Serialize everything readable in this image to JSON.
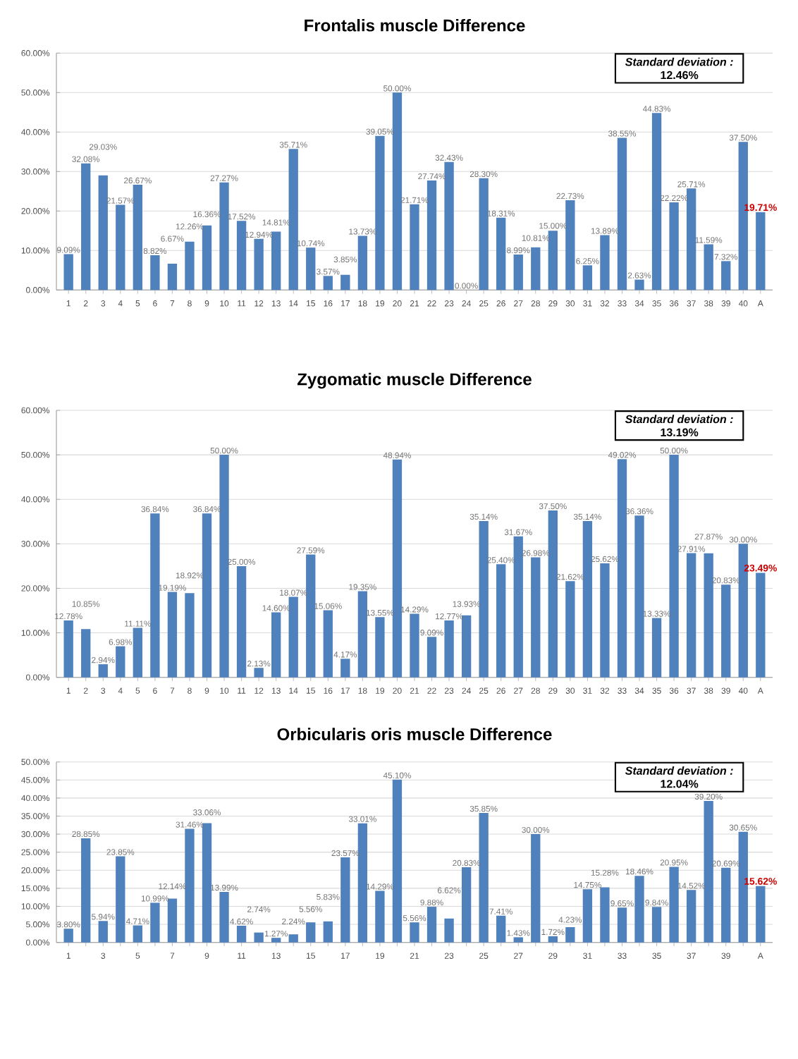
{
  "chart_data": [
    {
      "type": "bar",
      "title": "Frontalis muscle Difference",
      "color": "#4f81bd",
      "grid": "y",
      "annotations": [
        "Standard deviation :",
        "12.46%"
      ],
      "categories": [
        "1",
        "2",
        "3",
        "4",
        "5",
        "6",
        "7",
        "8",
        "9",
        "10",
        "11",
        "12",
        "13",
        "14",
        "15",
        "16",
        "17",
        "18",
        "19",
        "20",
        "21",
        "22",
        "23",
        "24",
        "25",
        "26",
        "27",
        "28",
        "29",
        "30",
        "31",
        "32",
        "33",
        "34",
        "35",
        "36",
        "37",
        "38",
        "39",
        "40",
        "A"
      ],
      "values": [
        9.09,
        32.08,
        29.03,
        21.57,
        26.67,
        8.82,
        6.67,
        12.26,
        16.36,
        27.27,
        17.52,
        12.94,
        14.81,
        35.71,
        10.74,
        3.57,
        3.85,
        13.73,
        39.05,
        50.0,
        21.71,
        27.74,
        32.43,
        0.0,
        28.3,
        18.31,
        8.99,
        10.81,
        15.0,
        22.73,
        6.25,
        13.89,
        38.55,
        2.63,
        44.83,
        22.22,
        25.71,
        11.59,
        7.32,
        37.5,
        19.71
      ],
      "value_labels": [
        "9.09%",
        "32.08%",
        "29.03%",
        "21.57%",
        "26.67%",
        "8.82%",
        "6.67%",
        "12.26%",
        "16.36%",
        "27.27%",
        "17.52%",
        "12.94%",
        "14.81%",
        "35.71%",
        "10.74%",
        "3.57%",
        "3.85%",
        "13.73%",
        "39.05%",
        "50.00%",
        "21.71%",
        "27.74%",
        "32.43%",
        "0.00%",
        "28.30%",
        "18.31%",
        "8.99%",
        "10.81%",
        "15.00%",
        "22.73%",
        "6.25%",
        "13.89%",
        "38.55%",
        "2.63%",
        "44.83%",
        "22.22%",
        "25.71%",
        "11.59%",
        "7.32%",
        "37.50%",
        "19.71%"
      ],
      "ylim": [
        0,
        60
      ],
      "yticks": [
        {
          "value": 0,
          "label": "0.00%"
        },
        {
          "value": 10,
          "label": "10.00%"
        },
        {
          "value": 20,
          "label": "20.00%"
        },
        {
          "value": 30,
          "label": "30.00%"
        },
        {
          "value": 40,
          "label": "40.00%"
        },
        {
          "value": 50,
          "label": "50.00%"
        },
        {
          "value": 60,
          "label": "60.00%"
        }
      ]
    },
    {
      "type": "bar",
      "title": "Zygomatic muscle Difference",
      "color": "#4f81bd",
      "grid": "y",
      "annotations": [
        "Standard deviation :",
        "13.19%"
      ],
      "categories": [
        "1",
        "2",
        "3",
        "4",
        "5",
        "6",
        "7",
        "8",
        "9",
        "10",
        "11",
        "12",
        "13",
        "14",
        "15",
        "16",
        "17",
        "18",
        "19",
        "20",
        "21",
        "22",
        "23",
        "24",
        "25",
        "26",
        "27",
        "28",
        "29",
        "30",
        "31",
        "32",
        "33",
        "34",
        "35",
        "36",
        "37",
        "38",
        "39",
        "40",
        "A"
      ],
      "values": [
        12.78,
        10.85,
        2.94,
        6.98,
        11.11,
        36.84,
        19.19,
        18.92,
        36.84,
        50.0,
        25.0,
        2.13,
        14.6,
        18.07,
        27.59,
        15.06,
        4.17,
        19.35,
        13.55,
        48.94,
        14.29,
        9.09,
        12.77,
        13.93,
        35.14,
        25.4,
        31.67,
        26.98,
        37.5,
        21.62,
        35.14,
        25.62,
        49.02,
        36.36,
        13.33,
        50.0,
        27.91,
        27.87,
        20.83,
        30.0,
        23.49
      ],
      "value_labels": [
        "12.78%",
        "10.85%",
        "2.94%",
        "6.98%",
        "11.11%",
        "36.84%",
        "19.19%",
        "18.92%",
        "36.84%",
        "50.00%",
        "25.00%",
        "2.13%",
        "14.60%",
        "18.07%",
        "27.59%",
        "15.06%",
        "4.17%",
        "19.35%",
        "13.55%",
        "48.94%",
        "14.29%",
        "9.09%",
        "12.77%",
        "13.93%",
        "35.14%",
        "25.40%",
        "31.67%",
        "26.98%",
        "37.50%",
        "21.62%",
        "35.14%",
        "25.62%",
        "49.02%",
        "36.36%",
        "13.33%",
        "50.00%",
        "27.91%",
        "27.87%",
        "20.83%",
        "30.00%",
        "23.49%"
      ],
      "ylim": [
        0,
        60
      ],
      "yticks": [
        {
          "value": 0,
          "label": "0.00%"
        },
        {
          "value": 10,
          "label": "10.00%"
        },
        {
          "value": 20,
          "label": "20.00%"
        },
        {
          "value": 30,
          "label": "30.00%"
        },
        {
          "value": 40,
          "label": "40.00%"
        },
        {
          "value": 50,
          "label": "50.00%"
        },
        {
          "value": 60,
          "label": "60.00%"
        }
      ]
    },
    {
      "type": "bar",
      "title": "Orbicularis oris muscle Difference",
      "color": "#4f81bd",
      "grid": "y",
      "annotations": [
        "Standard deviation :",
        "12.04%"
      ],
      "categories": [
        "1",
        null,
        "3",
        null,
        "5",
        null,
        "7",
        null,
        "9",
        null,
        "11",
        null,
        "13",
        null,
        "15",
        null,
        "17",
        null,
        "19",
        null,
        "21",
        null,
        "23",
        null,
        "25",
        null,
        "27",
        null,
        "29",
        null,
        "31",
        null,
        "33",
        null,
        "35",
        null,
        "37",
        null,
        "39",
        null,
        "A"
      ],
      "values": [
        3.8,
        28.85,
        5.94,
        23.85,
        4.71,
        10.99,
        12.14,
        31.46,
        33.06,
        13.99,
        4.62,
        2.74,
        1.27,
        2.24,
        5.56,
        5.83,
        23.57,
        33.01,
        14.29,
        45.1,
        5.56,
        9.88,
        6.62,
        20.83,
        35.85,
        7.41,
        1.43,
        30.0,
        1.72,
        4.23,
        14.75,
        15.28,
        9.65,
        18.46,
        9.84,
        20.95,
        14.52,
        39.2,
        20.69,
        30.65,
        15.62
      ],
      "value_labels": [
        "3.80%",
        "28.85%",
        "5.94%",
        "23.85%",
        "4.71%",
        "10.99%",
        "12.14%",
        "31.46%",
        "33.06%",
        "13.99%",
        "4.62%",
        "2.74%",
        "1.27%",
        "2.24%",
        "5.56%",
        "5.83%",
        "23.57%",
        "33.01%",
        "14.29%",
        "45.10%",
        "5.56%",
        "9.88%",
        "6.62%",
        "20.83%",
        "35.85%",
        "7.41%",
        "1.43%",
        "30.00%",
        "1.72%",
        "4.23%",
        "14.75%",
        "15.28%",
        "9.65%",
        "18.46%",
        "9.84%",
        "20.95%",
        "14.52%",
        "39.20%",
        "20.69%",
        "30.65%",
        "15.62%"
      ],
      "ylim": [
        0,
        50
      ],
      "yticks": [
        {
          "value": 0,
          "label": "0.00%"
        },
        {
          "value": 5,
          "label": "5.00%"
        },
        {
          "value": 10,
          "label": "10.00%"
        },
        {
          "value": 15,
          "label": "15.00%"
        },
        {
          "value": 20,
          "label": "20.00%"
        },
        {
          "value": 25,
          "label": "25.00%"
        },
        {
          "value": 30,
          "label": "30.00%"
        },
        {
          "value": 35,
          "label": "35.00%"
        },
        {
          "value": 40,
          "label": "40.00%"
        },
        {
          "value": 45,
          "label": "45.00%"
        },
        {
          "value": 50,
          "label": "50.00%"
        }
      ]
    }
  ]
}
